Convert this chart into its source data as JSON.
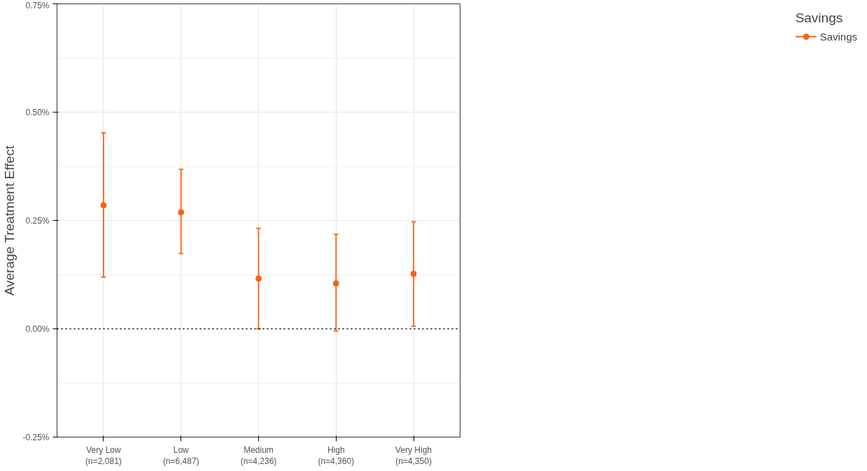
{
  "chart_data": {
    "type": "scatter",
    "ylabel": "Average Treatment Effect",
    "legend_title": "Savings",
    "categories": [
      "Very Low\n(n=2,081)",
      "Low\n(n=6,487)",
      "Medium\n(n=4,236)",
      "High\n(n=4,360)",
      "Very High\n(n=4,350)"
    ],
    "series": [
      {
        "name": "Savings",
        "color": "#ff5f0f",
        "values": [
          0.285,
          0.269,
          0.116,
          0.105,
          0.127
        ],
        "errors": [
          [
            0.119,
            0.452
          ],
          [
            0.174,
            0.368
          ],
          [
            0.0,
            0.232
          ],
          [
            -0.005,
            0.218
          ],
          [
            0.006,
            0.247
          ]
        ]
      }
    ],
    "ylim": [
      -0.25,
      0.75
    ],
    "yticks": [
      {
        "value": -0.25,
        "label": "-0.25%"
      },
      {
        "value": 0,
        "label": "0.00%"
      },
      {
        "value": 0.25,
        "label": "0.25%"
      },
      {
        "value": 0.5,
        "label": "0.50%"
      },
      {
        "value": 0.75,
        "label": "0.75%"
      }
    ],
    "ref_lines": [
      {
        "axis": "y",
        "value": 0,
        "color": "#000000",
        "line_style": "dotted"
      }
    ],
    "grid": true,
    "legend": "right",
    "marker": "circle"
  }
}
